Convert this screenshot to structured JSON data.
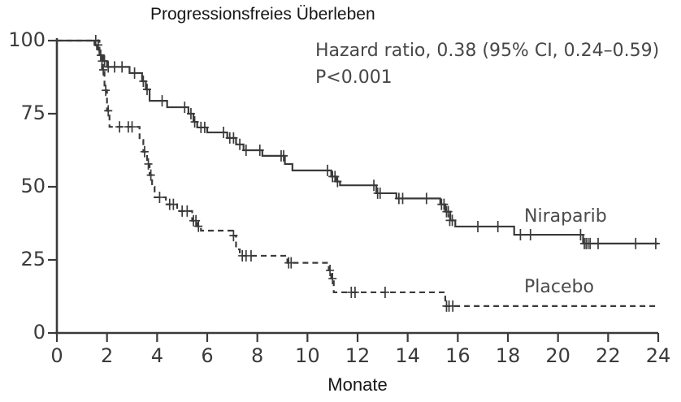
{
  "colors": {
    "curve": "#3a3a3a",
    "axis": "#3a3a3a",
    "title_text": "#161616",
    "annotation_text": "#474747",
    "tick_text": "#3b3b3b"
  },
  "chart_data": {
    "type": "line",
    "variant": "kaplan_meier_step",
    "title": "Progressionsfreies Überleben",
    "xlabel": "Monate",
    "ylabel": "",
    "xlim": [
      0,
      24
    ],
    "ylim": [
      0,
      100
    ],
    "x_ticks": [
      0,
      2,
      4,
      6,
      8,
      10,
      12,
      14,
      16,
      18,
      20,
      22,
      24
    ],
    "y_ticks": [
      0,
      25,
      50,
      75,
      100
    ],
    "grid": false,
    "legend_position": "inline-right",
    "annotations": {
      "hazard_ratio": "Hazard ratio, 0.38 (95% CI, 0.24–0.59)",
      "p_value": "P<0.001"
    },
    "series": [
      {
        "name": "Niraparib",
        "style": "solid",
        "color": "#3a3a3a",
        "end_time": 24,
        "steps": [
          [
            0,
            100
          ],
          [
            1.5,
            98.5
          ],
          [
            1.6,
            97
          ],
          [
            1.7,
            95
          ],
          [
            1.85,
            93
          ],
          [
            2.0,
            91
          ],
          [
            2.9,
            88.9
          ],
          [
            3.4,
            86.1
          ],
          [
            3.55,
            83.3
          ],
          [
            3.7,
            79.4
          ],
          [
            4.4,
            77.2
          ],
          [
            5.25,
            75
          ],
          [
            5.45,
            72.2
          ],
          [
            5.6,
            70.3
          ],
          [
            6.0,
            68.6
          ],
          [
            6.8,
            66.7
          ],
          [
            7.15,
            64.5
          ],
          [
            7.45,
            62.5
          ],
          [
            8.2,
            60.6
          ],
          [
            9.1,
            57.8
          ],
          [
            9.4,
            55.6
          ],
          [
            10.95,
            53.5
          ],
          [
            11.15,
            51.8
          ],
          [
            11.3,
            50.5
          ],
          [
            12.75,
            47.8
          ],
          [
            13.55,
            46
          ],
          [
            15.3,
            44
          ],
          [
            15.5,
            41.5
          ],
          [
            15.7,
            38.5
          ],
          [
            15.9,
            36.4
          ],
          [
            18.25,
            33.6
          ],
          [
            21.0,
            30.6
          ]
        ],
        "censor_marks": [
          [
            1.55,
            100
          ],
          [
            1.65,
            98.5
          ],
          [
            1.75,
            95
          ],
          [
            1.8,
            93
          ],
          [
            1.9,
            93
          ],
          [
            2.05,
            91
          ],
          [
            2.3,
            91
          ],
          [
            2.6,
            91
          ],
          [
            3.1,
            88.9
          ],
          [
            3.45,
            86.1
          ],
          [
            3.6,
            83.3
          ],
          [
            4.2,
            79.4
          ],
          [
            5.1,
            77.2
          ],
          [
            5.35,
            75
          ],
          [
            5.5,
            72.2
          ],
          [
            5.75,
            70.3
          ],
          [
            5.9,
            70.3
          ],
          [
            6.65,
            68.6
          ],
          [
            6.9,
            66.7
          ],
          [
            7.05,
            66.7
          ],
          [
            7.3,
            64.5
          ],
          [
            7.55,
            62.5
          ],
          [
            8.1,
            62.5
          ],
          [
            8.95,
            60.6
          ],
          [
            9.05,
            60.6
          ],
          [
            10.8,
            55.6
          ],
          [
            11.0,
            53.5
          ],
          [
            11.1,
            53.5
          ],
          [
            11.2,
            51.8
          ],
          [
            12.65,
            50.5
          ],
          [
            12.8,
            47.8
          ],
          [
            12.9,
            47.8
          ],
          [
            13.65,
            46
          ],
          [
            13.8,
            46
          ],
          [
            14.75,
            46
          ],
          [
            15.35,
            44
          ],
          [
            15.45,
            44
          ],
          [
            15.55,
            41.5
          ],
          [
            15.62,
            41.5
          ],
          [
            15.68,
            38.5
          ],
          [
            15.78,
            38.5
          ],
          [
            16.8,
            36.4
          ],
          [
            17.6,
            36.4
          ],
          [
            18.5,
            33.6
          ],
          [
            18.9,
            33.6
          ],
          [
            20.9,
            33.6
          ],
          [
            21.05,
            30.6
          ],
          [
            21.12,
            30.6
          ],
          [
            21.2,
            30.6
          ],
          [
            21.28,
            30.6
          ],
          [
            21.6,
            30.6
          ],
          [
            23.1,
            30.6
          ],
          [
            23.9,
            30.6
          ]
        ]
      },
      {
        "name": "Placebo",
        "style": "dashed",
        "color": "#3a3a3a",
        "end_time": 24,
        "steps": [
          [
            0,
            100
          ],
          [
            1.7,
            95
          ],
          [
            1.8,
            90
          ],
          [
            1.9,
            83
          ],
          [
            2.0,
            76
          ],
          [
            2.1,
            70.5
          ],
          [
            3.3,
            66
          ],
          [
            3.45,
            62
          ],
          [
            3.6,
            57.8
          ],
          [
            3.7,
            54
          ],
          [
            3.8,
            50
          ],
          [
            3.9,
            46.4
          ],
          [
            4.35,
            44
          ],
          [
            4.8,
            41.7
          ],
          [
            5.4,
            38.4
          ],
          [
            5.6,
            36.5
          ],
          [
            5.75,
            35
          ],
          [
            7.0,
            33.3
          ],
          [
            7.15,
            28.6
          ],
          [
            7.3,
            26.4
          ],
          [
            9.2,
            24
          ],
          [
            10.85,
            21.4
          ],
          [
            10.95,
            18.6
          ],
          [
            11.05,
            13.9
          ],
          [
            15.5,
            9.2
          ]
        ],
        "censor_marks": [
          [
            1.85,
            90
          ],
          [
            1.95,
            83
          ],
          [
            2.05,
            76
          ],
          [
            2.5,
            70.5
          ],
          [
            2.85,
            70.5
          ],
          [
            3.0,
            70.5
          ],
          [
            3.5,
            62
          ],
          [
            3.65,
            57.8
          ],
          [
            3.75,
            54
          ],
          [
            4.1,
            46.4
          ],
          [
            4.5,
            44
          ],
          [
            4.65,
            44
          ],
          [
            5.0,
            41.7
          ],
          [
            5.2,
            41.7
          ],
          [
            5.45,
            38.4
          ],
          [
            5.55,
            38.4
          ],
          [
            5.65,
            36.5
          ],
          [
            7.05,
            33.3
          ],
          [
            7.4,
            26.4
          ],
          [
            7.55,
            26.4
          ],
          [
            7.75,
            26.4
          ],
          [
            9.25,
            24
          ],
          [
            9.35,
            24
          ],
          [
            10.9,
            21.4
          ],
          [
            11.0,
            18.6
          ],
          [
            11.75,
            13.9
          ],
          [
            11.9,
            13.9
          ],
          [
            13.1,
            13.9
          ],
          [
            15.55,
            9.2
          ],
          [
            15.65,
            9.2
          ],
          [
            15.8,
            9.2
          ]
        ]
      }
    ]
  }
}
